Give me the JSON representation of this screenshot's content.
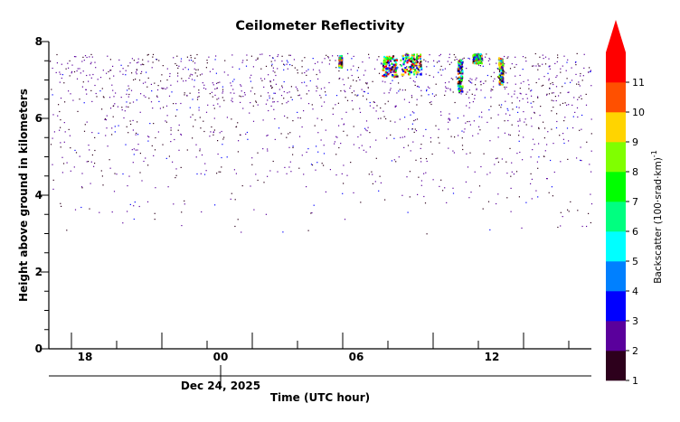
{
  "chart_data": {
    "type": "heatmap",
    "title": "Ceilometer Reflectivity",
    "xlabel": "Time (UTC hour)",
    "ylabel": "Height above ground in kilometers",
    "date_label": "Dec 24, 2025",
    "x_tick_labels": [
      "18",
      "00",
      "06",
      "12"
    ],
    "y_tick_labels": [
      "0",
      "2",
      "4",
      "6",
      "8"
    ],
    "xlim_hours_since_dec24_00": [
      -19.5,
      16.5
    ],
    "ylim_km": [
      0,
      8
    ],
    "data_top_km": 7.7,
    "colorbar": {
      "label": "Backscatter (100·srad·km)",
      "label_exponent": "-1",
      "tick_labels": [
        "1",
        "2",
        "3",
        "4",
        "5",
        "6",
        "7",
        "8",
        "9",
        "10",
        "11"
      ],
      "colors": [
        "#2d001c",
        "#5a009c",
        "#0000ff",
        "#0080ff",
        "#00ffff",
        "#00ff80",
        "#00ff00",
        "#80ff00",
        "#ffd400",
        "#ff5000",
        "#ff0000"
      ],
      "extend": "max"
    },
    "cloud_patches": [
      {
        "t_start": -0.3,
        "t_end": -0.1,
        "h_bottom": 7.35,
        "h_top": 7.65
      },
      {
        "t_start": 2.6,
        "t_end": 3.6,
        "h_bottom": 7.1,
        "h_top": 7.65
      },
      {
        "t_start": 3.8,
        "t_end": 5.2,
        "h_bottom": 7.15,
        "h_top": 7.7
      },
      {
        "t_start": 7.6,
        "t_end": 7.9,
        "h_bottom": 6.7,
        "h_top": 7.55
      },
      {
        "t_start": 8.6,
        "t_end": 9.2,
        "h_bottom": 7.45,
        "h_top": 7.7
      },
      {
        "t_start": 10.3,
        "t_end": 10.6,
        "h_bottom": 6.9,
        "h_top": 7.6
      }
    ]
  }
}
